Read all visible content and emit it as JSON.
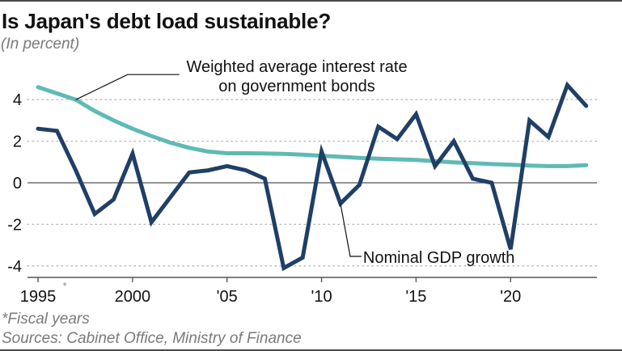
{
  "header": {
    "title": "Is Japan's debt load sustainable?",
    "subtitle": "(In percent)"
  },
  "footer": {
    "note": "*Fiscal years",
    "source": "Sources: Cabinet Office, Ministry of Finance"
  },
  "colors": {
    "gdp": "#1f3f66",
    "interest": "#5fbab4",
    "grid": "#b5b5b5",
    "axis": "#555555"
  },
  "chart_data": {
    "type": "line",
    "title": "Is Japan's debt load sustainable?",
    "subtitle": "(In percent)",
    "xlabel": "",
    "ylabel": "",
    "xlim": [
      1995,
      2024
    ],
    "ylim": [
      -4.3,
      5
    ],
    "grid": true,
    "yticks": [
      4,
      2,
      0,
      -2,
      -4
    ],
    "ytick_labels": [
      "4",
      "2",
      "0",
      "-2",
      "-4"
    ],
    "xticks": [
      1995,
      2000,
      2005,
      2010,
      2015,
      2020
    ],
    "xtick_labels": [
      "1995",
      "2000",
      "'05",
      "'10",
      "'15",
      "'20"
    ],
    "xtick_marker": "*",
    "x": [
      1995,
      1996,
      1997,
      1998,
      1999,
      2000,
      2001,
      2002,
      2003,
      2004,
      2005,
      2006,
      2007,
      2008,
      2009,
      2010,
      2011,
      2012,
      2013,
      2014,
      2015,
      2016,
      2017,
      2018,
      2019,
      2020,
      2021,
      2022,
      2023,
      2024
    ],
    "series": [
      {
        "name": "Weighted average interest rate on government bonds",
        "label_lines": [
          "Weighted average interest rate",
          "on government bonds"
        ],
        "values": [
          4.6,
          4.3,
          4.0,
          3.45,
          3.0,
          2.6,
          2.25,
          1.93,
          1.68,
          1.5,
          1.42,
          1.42,
          1.41,
          1.39,
          1.35,
          1.3,
          1.25,
          1.2,
          1.16,
          1.13,
          1.1,
          1.04,
          0.98,
          0.94,
          0.9,
          0.87,
          0.83,
          0.8,
          0.8,
          0.85
        ]
      },
      {
        "name": "Nominal GDP growth",
        "label_lines": [
          "Nominal GDP growth"
        ],
        "values": [
          2.6,
          2.5,
          0.6,
          -1.5,
          -0.8,
          1.4,
          -1.9,
          -0.7,
          0.5,
          0.6,
          0.8,
          0.6,
          0.2,
          -4.1,
          -3.6,
          1.5,
          -1.0,
          -0.1,
          2.7,
          2.1,
          3.3,
          0.8,
          2.0,
          0.2,
          0.0,
          -3.2,
          3.0,
          2.2,
          4.7,
          3.7
        ]
      }
    ],
    "legend": "inline annotations"
  }
}
